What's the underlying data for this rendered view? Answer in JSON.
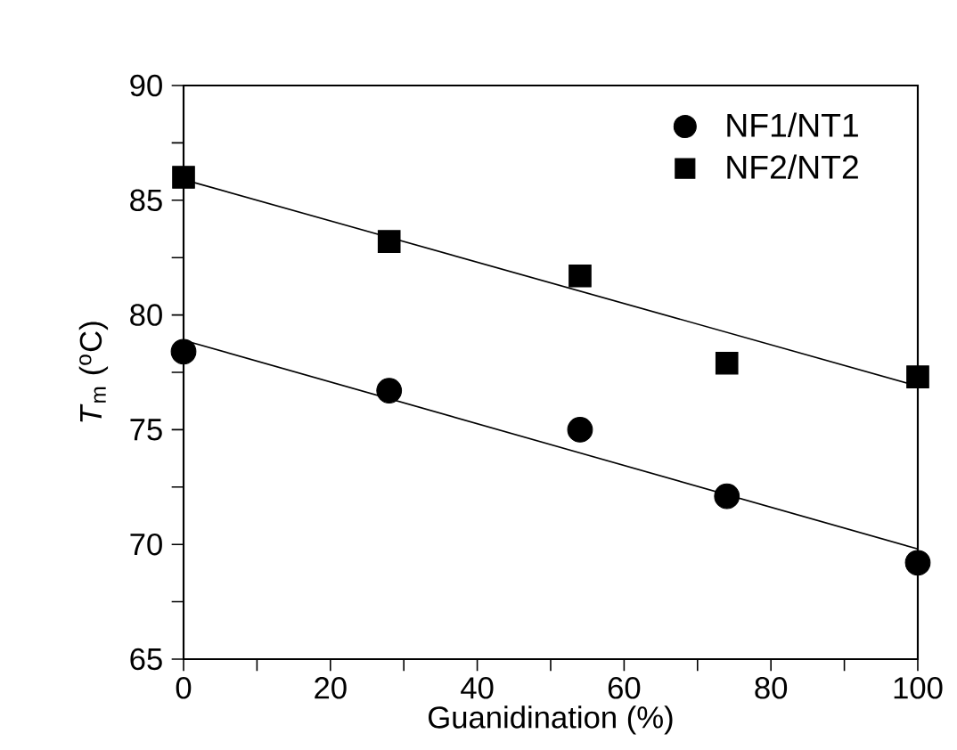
{
  "chart_data": {
    "type": "scatter",
    "xlabel": "Guanidination (%)",
    "ylabel": "*T*$_{m}$ ($^{o}$C)",
    "xlim": [
      0,
      100
    ],
    "ylim": [
      65,
      90
    ],
    "xticks": [
      0,
      {
        "value": 10,
        "label": null
      },
      20,
      {
        "value": 30,
        "label": null
      },
      40,
      {
        "value": 50,
        "label": null
      },
      60,
      {
        "value": 70,
        "label": null
      },
      80,
      {
        "value": 90,
        "label": null
      },
      100
    ],
    "yticks": [
      65,
      {
        "value": 67.5,
        "label": null
      },
      70,
      {
        "value": 72.5,
        "label": null
      },
      75,
      {
        "value": 77.5,
        "label": null
      },
      80,
      {
        "value": 82.5,
        "label": null
      },
      85,
      {
        "value": 87.5,
        "label": null
      },
      90
    ],
    "legend": "top right",
    "grid": false,
    "series": [
      {
        "name": "NF1/NT1",
        "color": "#000000",
        "marker": "circle",
        "x": [
          0,
          28,
          54,
          74,
          100
        ],
        "values": [
          78.4,
          76.7,
          75.0,
          72.1,
          69.2
        ]
      },
      {
        "name": "NF2/NT2",
        "color": "#000000",
        "marker": "square",
        "x": [
          0,
          28,
          54,
          74,
          100
        ],
        "values": [
          86.0,
          83.2,
          81.7,
          77.9,
          77.3
        ]
      },
      {
        "type": "line",
        "color": "#000000",
        "marker": "none",
        "line_style": "solid",
        "x": [
          0,
          100
        ],
        "values": [
          78.9,
          69.8
        ]
      },
      {
        "type": "line",
        "color": "#000000",
        "marker": "none",
        "line_style": "solid",
        "x": [
          0,
          100
        ],
        "values": [
          85.9,
          76.9
        ]
      }
    ]
  }
}
